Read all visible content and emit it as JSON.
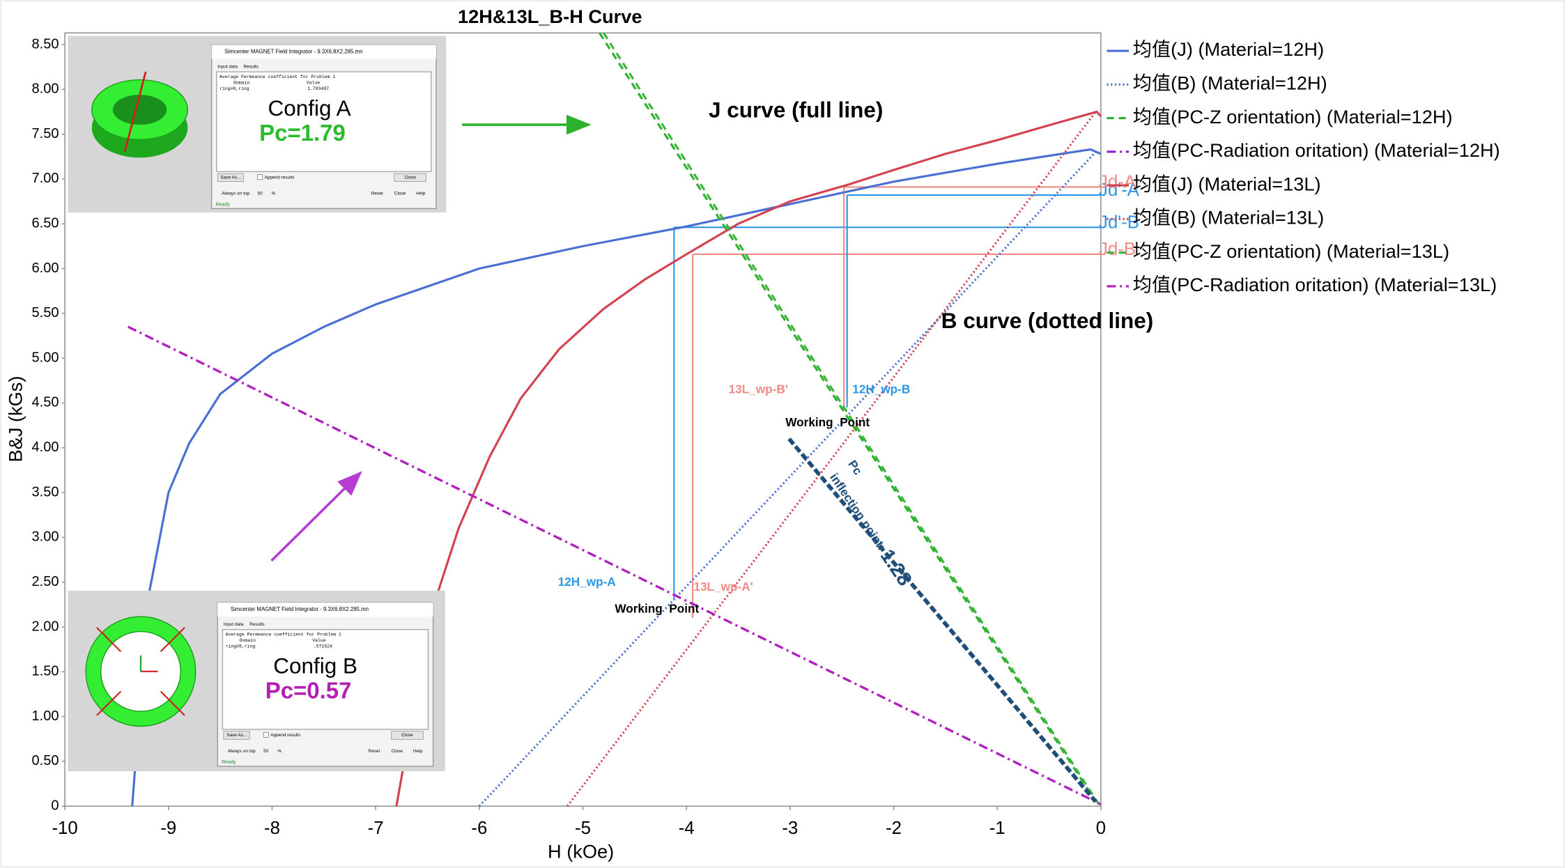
{
  "chart_data": {
    "type": "line",
    "title": "12H&13L_B-H Curve",
    "x_label": "H (kOe)",
    "y_label": "B&J (kGs)",
    "xlim": [
      -10,
      0
    ],
    "ylim": [
      0,
      8.63
    ],
    "xticks": [
      -10,
      -9,
      -8,
      -7,
      -6,
      -5,
      -4,
      -3,
      -2,
      -1,
      0
    ],
    "yticks": [
      0,
      {
        "value": 0.5,
        "label": "0.50"
      },
      {
        "value": 1,
        "label": "1.00"
      },
      {
        "value": 1.5,
        "label": "1.50"
      },
      {
        "value": 2,
        "label": "2.00"
      },
      {
        "value": 2.5,
        "label": "2.50"
      },
      {
        "value": 3,
        "label": "3.00"
      },
      {
        "value": 3.5,
        "label": "3.50"
      },
      {
        "value": 4,
        "label": "4.00"
      },
      {
        "value": 4.5,
        "label": "4.50"
      },
      {
        "value": 5,
        "label": "5.00"
      },
      {
        "value": 5.5,
        "label": "5.50"
      },
      {
        "value": 6,
        "label": "6.00"
      },
      {
        "value": 6.5,
        "label": "6.50"
      },
      {
        "value": 7,
        "label": "7.00"
      },
      {
        "value": 7.5,
        "label": "7.50"
      },
      {
        "value": 8,
        "label": "8.00"
      },
      {
        "value": 8.5,
        "label": "8.50"
      }
    ],
    "grid": false,
    "legend": "right",
    "series": [
      {
        "name": "均值(J) (Material=12H)",
        "color": "#4a6fd4",
        "style": "solid",
        "x": [
          -9.35,
          -9.2,
          -9.0,
          -8.8,
          -8.5,
          -8.0,
          -7.5,
          -7.0,
          -6.0,
          -5.0,
          -4.0,
          -3.0,
          -2.0,
          -1.0,
          -0.1,
          0
        ],
        "values": [
          0,
          2.3,
          3.5,
          4.05,
          4.6,
          5.05,
          5.35,
          5.6,
          6.0,
          6.25,
          6.47,
          6.72,
          6.97,
          7.17,
          7.33,
          7.28
        ]
      },
      {
        "name": "均值(B) (Material=12H)",
        "color": "#4a6fd4",
        "style": "dotted",
        "x": [
          -6.0,
          -0.05
        ],
        "values": [
          0,
          7.3
        ]
      },
      {
        "name": "均值(PC-Z orientation) (Material=12H)",
        "color": "#2cb22c",
        "style": "dashed",
        "x": [
          -4.84,
          -0.05
        ],
        "values": [
          8.63,
          0.05
        ]
      },
      {
        "name": "均值(PC-Radiation oritation) (Material=12H)",
        "color": "#8a1ec8",
        "style": "dashdot",
        "x": [
          -9.39,
          -0.05
        ],
        "values": [
          5.35,
          0.05
        ]
      },
      {
        "name": "均值(J) (Material=13L)",
        "color": "#d4424f",
        "style": "solid",
        "x": [
          -6.8,
          -6.6,
          -6.48,
          -6.2,
          -5.9,
          -5.6,
          -5.23,
          -4.8,
          -4.4,
          -4.0,
          -3.5,
          -3.0,
          -2.43,
          -2.0,
          -1.5,
          -0.98,
          -0.5,
          -0.04,
          0
        ],
        "values": [
          0,
          1.3,
          2.1,
          3.1,
          3.9,
          4.55,
          5.1,
          5.55,
          5.88,
          6.16,
          6.5,
          6.75,
          6.94,
          7.1,
          7.28,
          7.44,
          7.6,
          7.75,
          7.7
        ]
      },
      {
        "name": "均值(B) (Material=13L)",
        "color": "#d4424f",
        "style": "dotted",
        "x": [
          -5.15,
          -0.05
        ],
        "values": [
          0,
          7.75
        ]
      },
      {
        "name": "均值(PC-Z orientation) (Material=13L)",
        "color": "#3cb43c",
        "style": "dashed",
        "x": [
          -4.8,
          -0.02
        ],
        "values": [
          8.63,
          0.02
        ]
      },
      {
        "name": "均值(PC-Radiation oritation) (Material=13L)",
        "color": "#b21ec0",
        "style": "dashdot",
        "x": [
          -9.39,
          0
        ],
        "values": [
          5.35,
          0.02
        ]
      }
    ],
    "working_points": [
      {
        "level_label": "Jd'-B",
        "x": -4.12,
        "y_from": 2.32,
        "y": 6.46,
        "color": "#2b96e6"
      },
      {
        "level_label": "Jd-B",
        "x": -3.94,
        "y_from": 2.1,
        "y": 6.16,
        "color": "#f08a84"
      },
      {
        "level_label": "Jd'-A",
        "x": -2.45,
        "y_from": 4.45,
        "y": 6.82,
        "color": "#2b96e6"
      },
      {
        "level_label": "Jd-A",
        "x": -2.48,
        "y_from": 4.45,
        "y": 6.91,
        "color": "#f08a84"
      }
    ],
    "inflection": {
      "x": [
        -3.01,
        -0.05
      ],
      "y": [
        4.1,
        0.05
      ],
      "color": "#1f4e79",
      "label": "Pc",
      "text": "inflection point: ",
      "value": "1.28"
    },
    "annotations": [
      "J curve (full line)",
      "B curve (dotted line)",
      "13L_wp-B'",
      "12H_wp-B",
      "Working  Point",
      "12H_wp-A",
      "13L_wp-A'",
      "Working  Point"
    ],
    "insets": [
      {
        "window_title": "Simcenter MAGNET Field Integrator - 9.3X6.8X2.285.mn",
        "tabs": [
          "Input data",
          "Results"
        ],
        "heading": "Average Permeance coefficient for Problem 1",
        "columns": [
          "Domain",
          "Value"
        ],
        "row": [
          "ring#8,ring",
          "1.793497"
        ],
        "config": "Config A",
        "pc": "Pc=1.79",
        "pc_color": "#2dbb2d",
        "buttons": [
          "Save As...",
          "Append results",
          "Close"
        ],
        "footer": [
          "Always on top",
          "50",
          "%",
          "Reset",
          "Close",
          "Help"
        ],
        "status": "Ready"
      },
      {
        "window_title": "Simcenter MAGNET Field Integrator - 9.3X6.8X2.285.mn",
        "tabs": [
          "Input data",
          "Results"
        ],
        "heading": "Average Permeance coefficient for Problem 1",
        "columns": [
          "Domain",
          "Value"
        ],
        "row": [
          "ring#8,ring",
          ".571624"
        ],
        "config": "Config B",
        "pc": "Pc=0.57",
        "pc_color": "#b41eb4",
        "buttons": [
          "Save As...",
          "Append results",
          "Close"
        ],
        "footer": [
          "Always on top",
          "50",
          "%",
          "Reset",
          "Close",
          "Help"
        ],
        "status": "Ready"
      }
    ]
  }
}
